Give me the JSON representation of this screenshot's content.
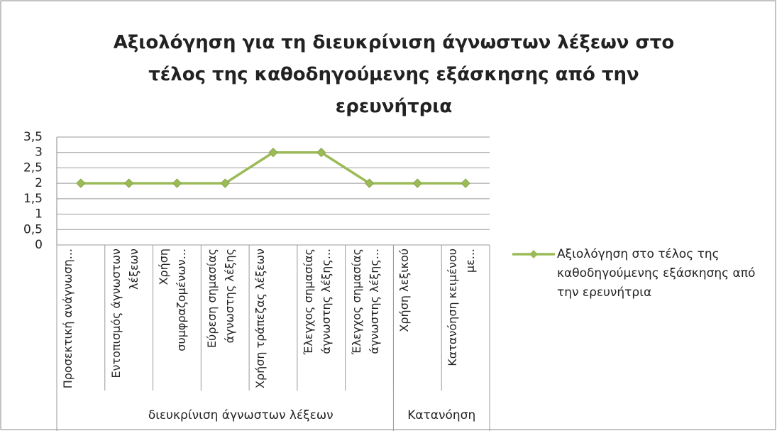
{
  "chart_data": {
    "type": "line",
    "title": "Αξιολόγηση για τη διευκρίνιση άγνωστων λέξεων στο τέλος της καθοδηγούμενης εξάσκησης από την ερευνήτρια",
    "categories": [
      "Προσεκτική ανάγνωση...",
      "Εντοπισμός άγνωστων λέξεων",
      "Χρήση συμφραζομένων...",
      "Εύρεση σημασίας άγνωστης λέξης",
      "Χρήση τράπεζας λέξεων",
      "Έλεγχος σημασίας άγνωστης λέξης...",
      "Έλεγχος σημασίας άγνωστης λέξης...",
      "Χρήση λεξικού",
      "Κατανόηση κειμένου με..."
    ],
    "groups": [
      "διευκρίνιση άγνωστων λέξεων",
      "Κατανόηση"
    ],
    "series": [
      {
        "name": "Αξιολόγηση στο τέλος της καθοδηγούμενης εξάσκησης από την ερευνήτρια",
        "color": "#9bbb59",
        "values": [
          2,
          2,
          2,
          2,
          3,
          3,
          2,
          2,
          2
        ]
      }
    ],
    "ylim": [
      0,
      3.5
    ],
    "yticks": [
      0,
      {
        "value": 0.5,
        "label": "0,5"
      },
      1,
      {
        "value": 1.5,
        "label": "1,5"
      },
      2,
      {
        "value": 2.5,
        "label": "2,5"
      },
      3,
      {
        "value": 3.5,
        "label": "3,5"
      }
    ],
    "grid": true,
    "legend": "right"
  }
}
